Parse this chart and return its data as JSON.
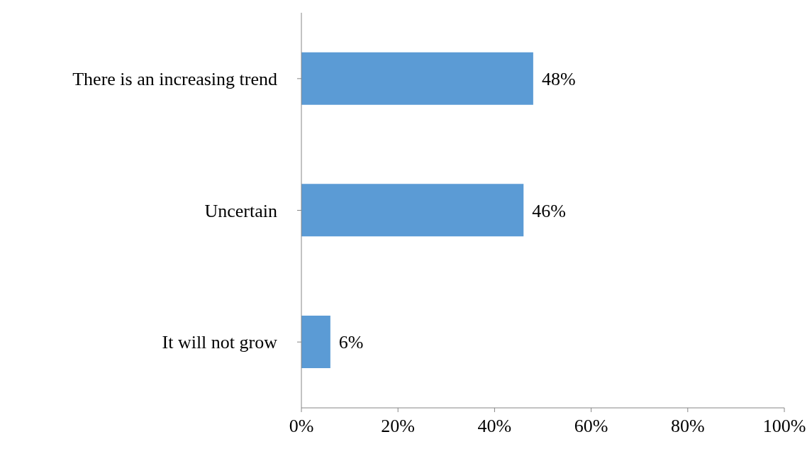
{
  "chart_data": {
    "type": "bar",
    "orientation": "horizontal",
    "categories": [
      "There is an increasing trend",
      "Uncertain",
      "It will not grow"
    ],
    "values": [
      48,
      46,
      6
    ],
    "color": "#5b9bd5",
    "value_labels": [
      "48%",
      "46%",
      "6%"
    ],
    "xlim": [
      0,
      100
    ],
    "xticks": [
      {
        "value": 0,
        "label": "0%"
      },
      {
        "value": 20,
        "label": "20%"
      },
      {
        "value": 40,
        "label": "40%"
      },
      {
        "value": 60,
        "label": "60%"
      },
      {
        "value": 80,
        "label": "80%"
      },
      {
        "value": 100,
        "label": "100%"
      }
    ],
    "grid": false,
    "legend": false
  }
}
